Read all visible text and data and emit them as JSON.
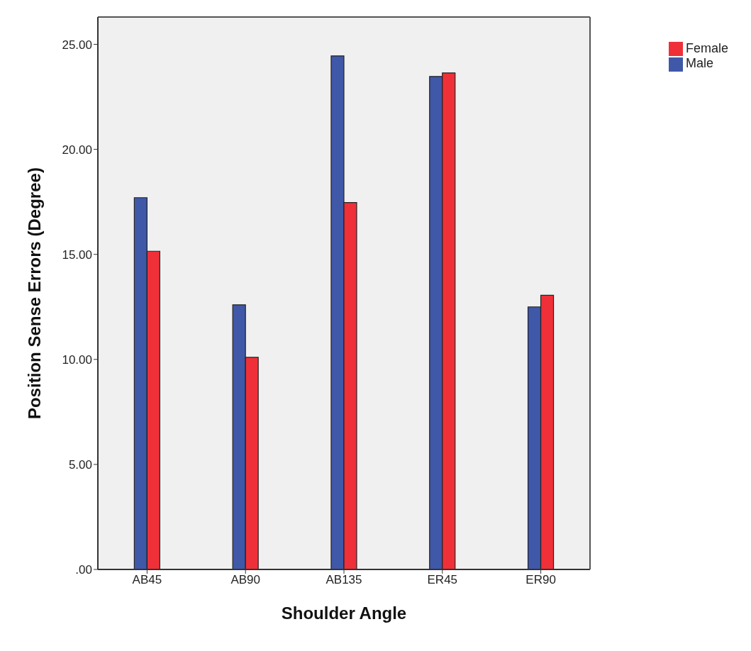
{
  "chart_data": {
    "type": "bar",
    "xlabel": "Shoulder Angle",
    "ylabel": "Position Sense Errors (Degree)",
    "categories": [
      "AB45",
      "AB90",
      "AB135",
      "ER45",
      "ER90"
    ],
    "series": [
      {
        "name": "Male",
        "color": "#3f58a8",
        "values": [
          17.7,
          12.6,
          24.45,
          23.47,
          12.5
        ]
      },
      {
        "name": "Female",
        "color": "#ef3038",
        "values": [
          15.15,
          10.1,
          17.47,
          23.64,
          13.05
        ]
      }
    ],
    "ylim": [
      0,
      26.3
    ],
    "yticks": [
      {
        "value": 0,
        "label": ".00"
      },
      {
        "value": 5,
        "label": "5.00"
      },
      {
        "value": 10,
        "label": "10.00"
      },
      {
        "value": 15,
        "label": "15.00"
      },
      {
        "value": 20,
        "label": "20.00"
      },
      {
        "value": 25,
        "label": "25.00"
      }
    ],
    "grid": false,
    "legend": "top right"
  }
}
